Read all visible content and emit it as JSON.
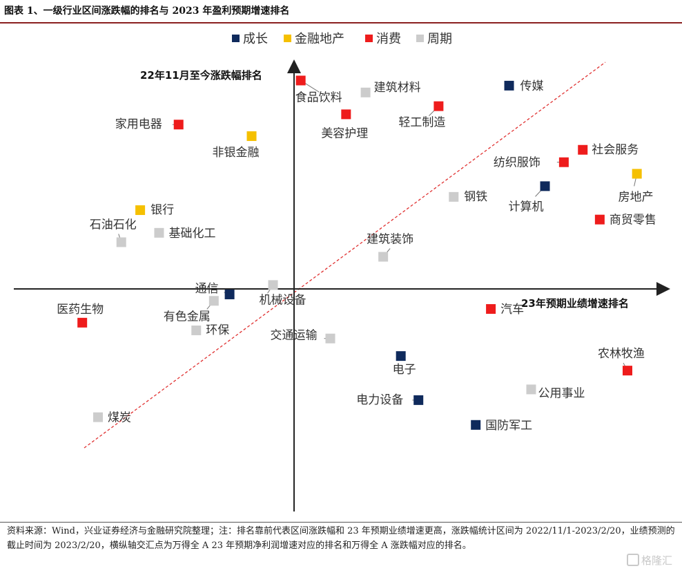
{
  "title": "图表 1、一级行业区间涨跌幅的排名与 2023 年盈利预期增速排名",
  "note": "资料来源：Wind，兴业证券经济与金融研究院整理；注：排名靠前代表区间涨跌幅和 23 年预期业绩增速更高，涨跌幅统计区间为 2022/11/1-2023/2/20，业绩预测的截止时间为 2023/2/20，横纵轴交汇点为万得全 A 23 年预期净利润增速对应的排名和万得全 A 涨跌幅对应的排名。",
  "watermark": "格隆汇",
  "chart_data": {
    "type": "scatter",
    "xlabel": "23年预期业绩增速排名",
    "ylabel": "22年11月至今涨跌幅排名",
    "xlim": [
      0,
      1
    ],
    "ylim": [
      0,
      1
    ],
    "grid": false,
    "legend_position": "top",
    "legend": [
      {
        "name": "成长",
        "color": "#0f2a5c"
      },
      {
        "name": "金融地产",
        "color": "#f5c000"
      },
      {
        "name": "消费",
        "color": "#ee1c1c"
      },
      {
        "name": "周期",
        "color": "#cccccc"
      }
    ],
    "annotations": [
      "diagonal dashed reference line"
    ],
    "points": [
      {
        "label": "食品饮料",
        "group": "消费",
        "x": 0.447,
        "y": 0.975
      },
      {
        "label": "建筑材料",
        "group": "周期",
        "x": 0.55,
        "y": 0.947
      },
      {
        "label": "传媒",
        "group": "成长",
        "x": 0.778,
        "y": 0.963
      },
      {
        "label": "轻工制造",
        "group": "消费",
        "x": 0.666,
        "y": 0.915
      },
      {
        "label": "美容护理",
        "group": "消费",
        "x": 0.519,
        "y": 0.896
      },
      {
        "label": "家用电器",
        "group": "消费",
        "x": 0.253,
        "y": 0.872
      },
      {
        "label": "非银金融",
        "group": "金融地产",
        "x": 0.369,
        "y": 0.845
      },
      {
        "label": "社会服务",
        "group": "消费",
        "x": 0.895,
        "y": 0.813
      },
      {
        "label": "纺织服饰",
        "group": "消费",
        "x": 0.865,
        "y": 0.784
      },
      {
        "label": "房地产",
        "group": "金融地产",
        "x": 0.981,
        "y": 0.757
      },
      {
        "label": "计算机",
        "group": "成长",
        "x": 0.835,
        "y": 0.728
      },
      {
        "label": "钢铁",
        "group": "周期",
        "x": 0.69,
        "y": 0.703
      },
      {
        "label": "银行",
        "group": "金融地产",
        "x": 0.192,
        "y": 0.672
      },
      {
        "label": "商贸零售",
        "group": "消费",
        "x": 0.922,
        "y": 0.65
      },
      {
        "label": "基础化工",
        "group": "周期",
        "x": 0.222,
        "y": 0.619
      },
      {
        "label": "石油石化",
        "group": "周期",
        "x": 0.162,
        "y": 0.597
      },
      {
        "label": "建筑装饰",
        "group": "周期",
        "x": 0.578,
        "y": 0.563
      },
      {
        "label": "机械设备",
        "group": "周期",
        "x": 0.403,
        "y": 0.497
      },
      {
        "label": "通信",
        "group": "成长",
        "x": 0.334,
        "y": 0.475
      },
      {
        "label": "有色金属",
        "group": "周期",
        "x": 0.309,
        "y": 0.46
      },
      {
        "label": "汽车",
        "group": "消费",
        "x": 0.749,
        "y": 0.441
      },
      {
        "label": "医药生物",
        "group": "消费",
        "x": 0.1,
        "y": 0.409
      },
      {
        "label": "环保",
        "group": "周期",
        "x": 0.281,
        "y": 0.391
      },
      {
        "label": "交通运输",
        "group": "周期",
        "x": 0.494,
        "y": 0.372
      },
      {
        "label": "电子",
        "group": "成长",
        "x": 0.606,
        "y": 0.331
      },
      {
        "label": "农林牧渔",
        "group": "消费",
        "x": 0.966,
        "y": 0.297
      },
      {
        "label": "公用事业",
        "group": "周期",
        "x": 0.813,
        "y": 0.253
      },
      {
        "label": "电力设备",
        "group": "成长",
        "x": 0.634,
        "y": 0.228
      },
      {
        "label": "国防军工",
        "group": "成长",
        "x": 0.725,
        "y": 0.17
      },
      {
        "label": "煤炭",
        "group": "周期",
        "x": 0.125,
        "y": 0.188
      }
    ]
  }
}
